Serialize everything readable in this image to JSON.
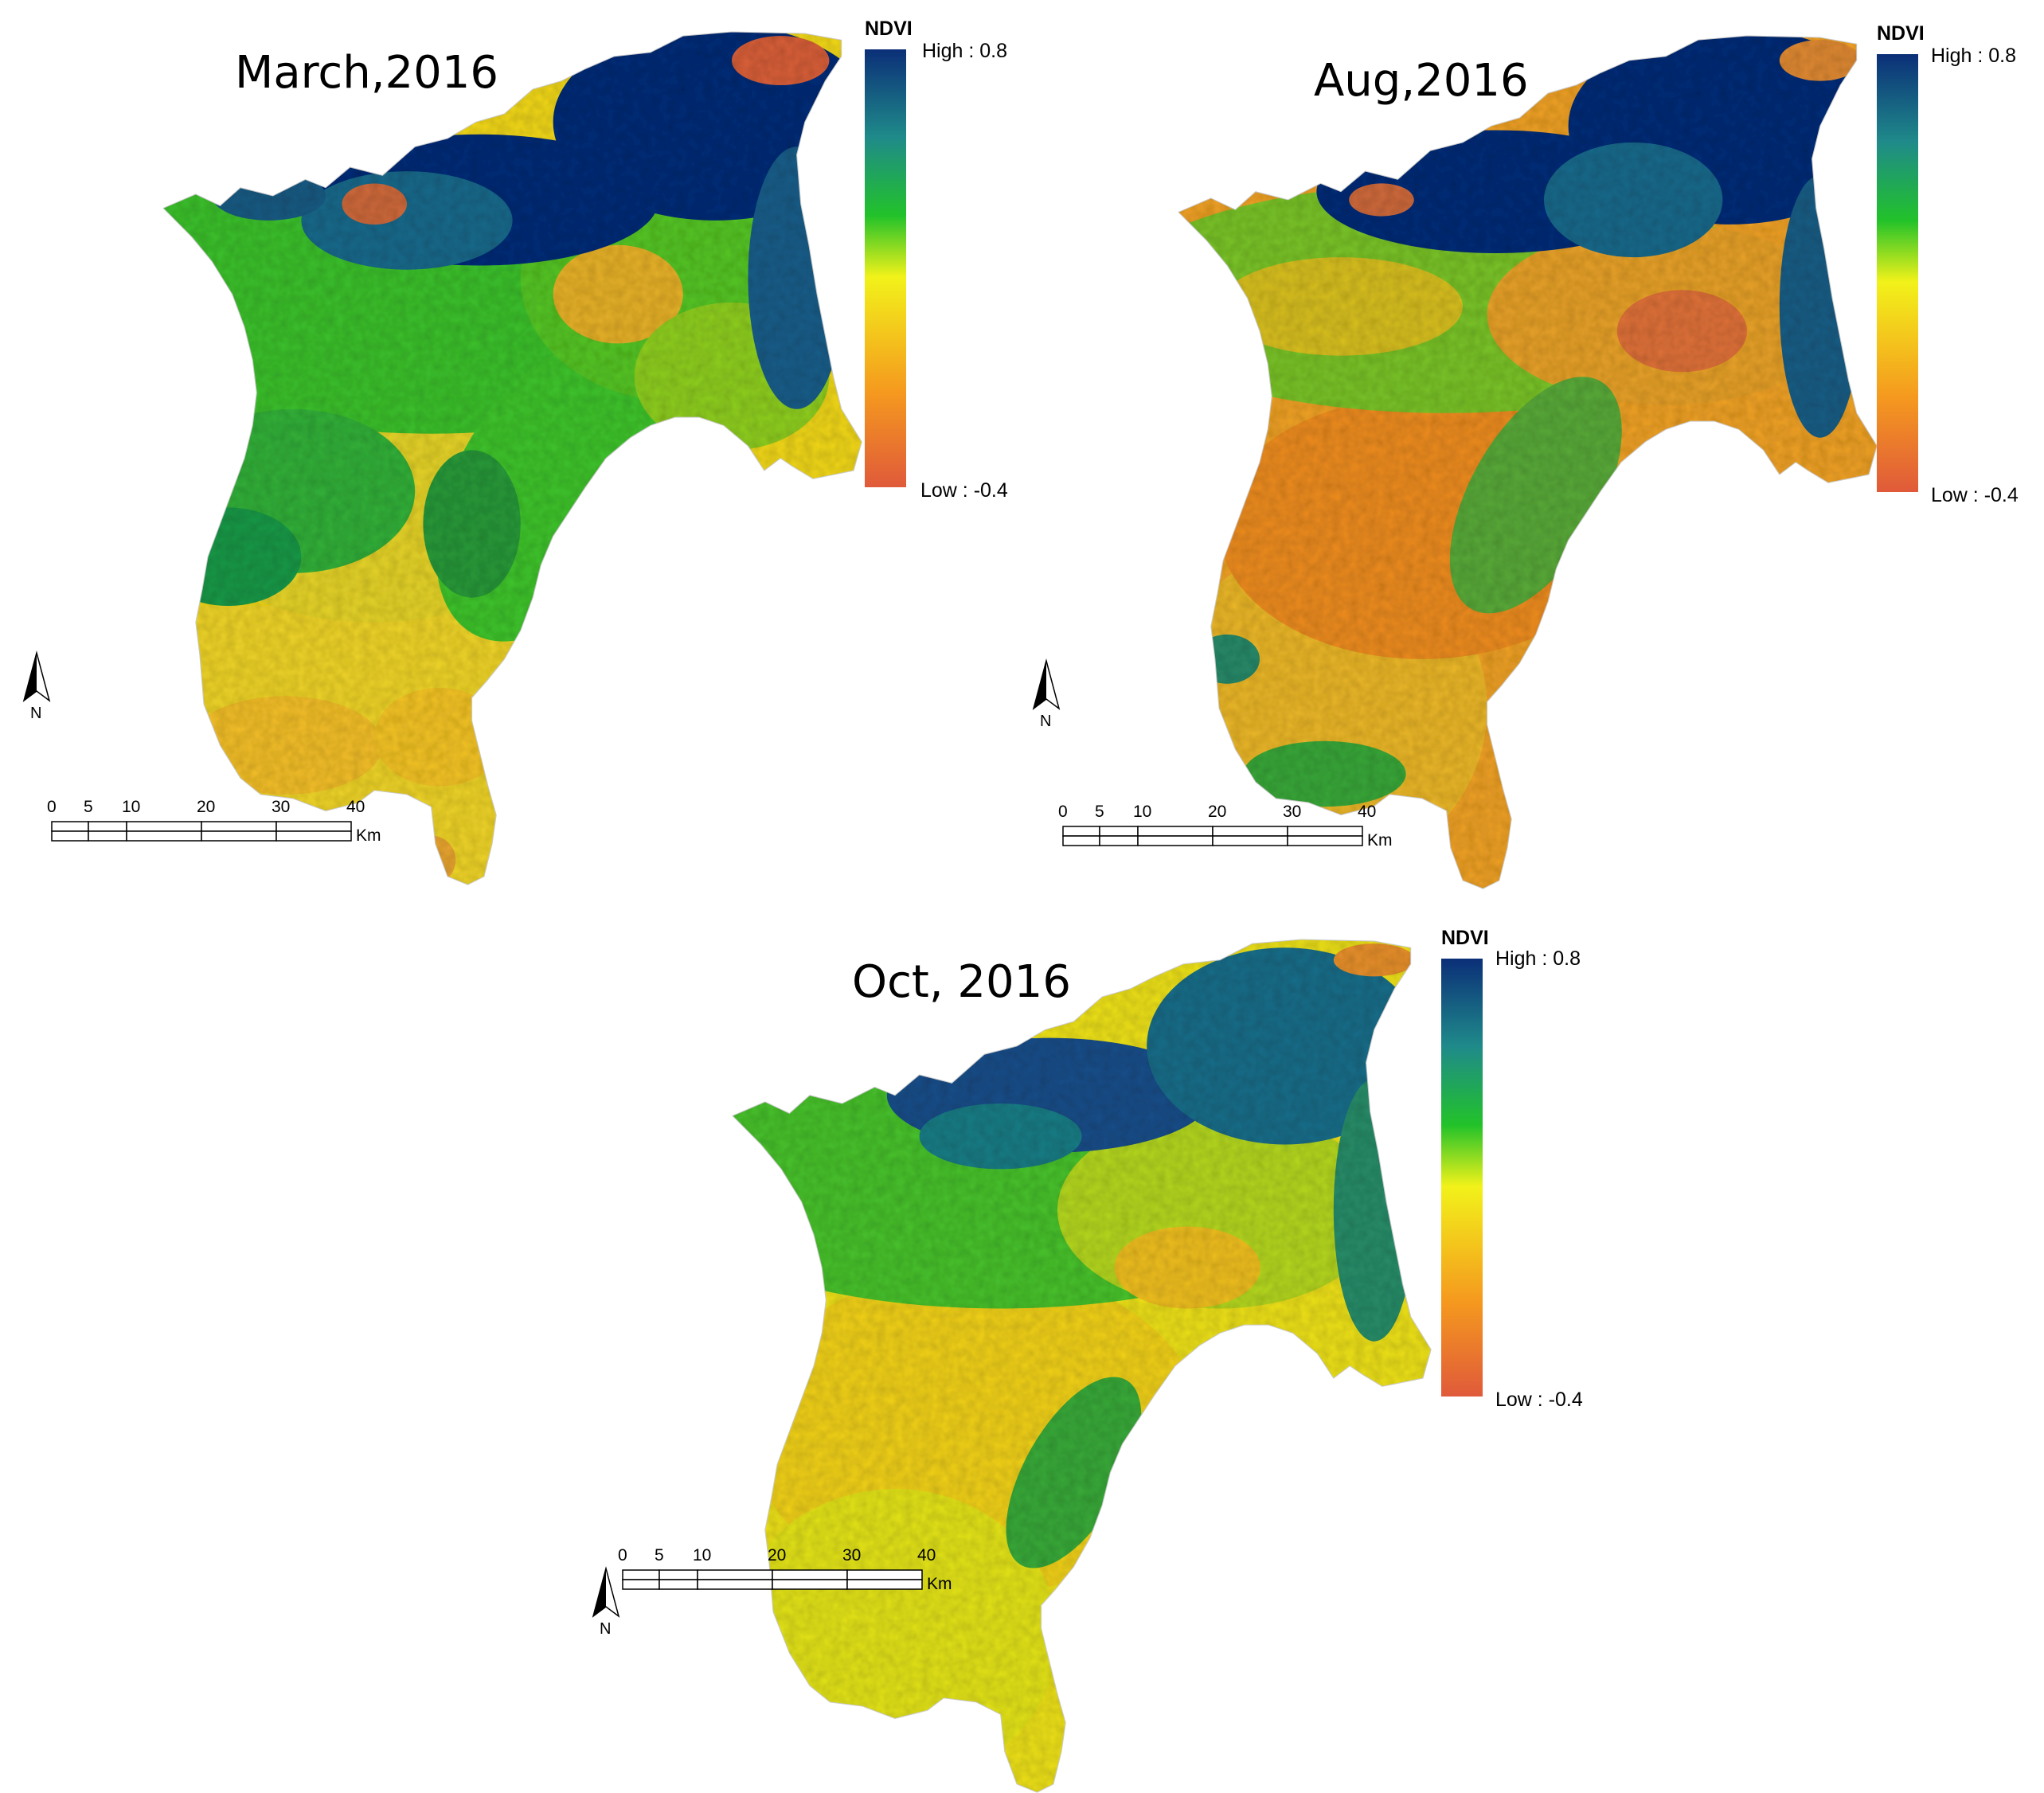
{
  "legend": {
    "title": "NDVI",
    "high_label": "High : 0.8",
    "low_label": "Low : -0.4",
    "colors": [
      "#0b2f78",
      "#1f8a8a",
      "#22c22a",
      "#f2f21a",
      "#f59a1e",
      "#e05a3a"
    ]
  },
  "scale_bar": {
    "ticks": [
      "0",
      "5",
      "10",
      "20",
      "30",
      "40"
    ],
    "unit": "Km"
  },
  "north_arrow": {
    "label": "N"
  },
  "panels": [
    {
      "id": "march",
      "title": "March,2016"
    },
    {
      "id": "aug",
      "title": "Aug,2016"
    },
    {
      "id": "oct",
      "title": "Oct, 2016"
    }
  ],
  "palette": {
    "dark_blue": "#0b2f78",
    "teal": "#1f8a8a",
    "green": "#22c22a",
    "yellow_green": "#b6e01e",
    "yellow": "#f2e11a",
    "orange": "#f59a1e",
    "red": "#e05a3a"
  }
}
